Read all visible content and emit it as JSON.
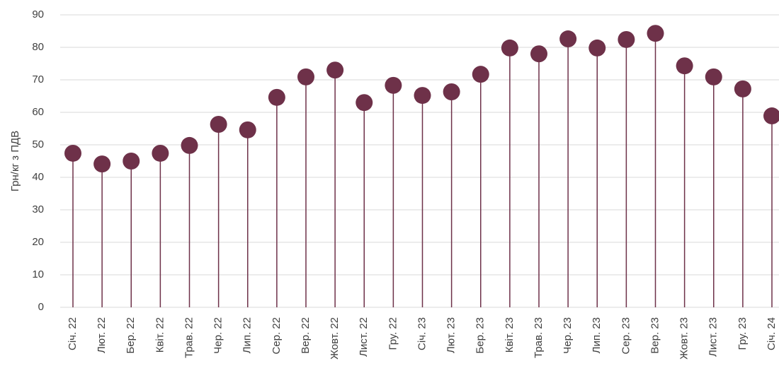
{
  "chart_data": {
    "type": "lollipop",
    "y_label": "Грн/кг з ПДВ",
    "categories": [
      "Січ. 22",
      "Лют. 22",
      "Бер. 22",
      "Квіт. 22",
      "Трав. 22",
      "Чер. 22",
      "Лип. 22",
      "Сер. 22",
      "Вер. 22",
      "Жовт. 22",
      "Лист. 22",
      "Гру. 22",
      "Січ. 23",
      "Лют. 23",
      "Бер. 23",
      "Квіт. 23",
      "Трав. 23",
      "Чер. 23",
      "Лип. 23",
      "Сер. 23",
      "Вер. 23",
      "Жовт. 23",
      "Лист. 23",
      "Гру. 23",
      "Січ. 24"
    ],
    "values": [
      47.4,
      44.1,
      45,
      47.4,
      49.8,
      56.3,
      54.6,
      64.6,
      70.9,
      73,
      63,
      68.3,
      65.2,
      66.3,
      71.7,
      79.8,
      78,
      82.6,
      79.8,
      82.4,
      84.3,
      74.3,
      70.9,
      67.2,
      58.9
    ],
    "color": "#6e3149",
    "ylim": [
      0,
      90
    ],
    "yticks": [
      0,
      10,
      20,
      30,
      40,
      50,
      60,
      70,
      80,
      90
    ],
    "grid": true
  }
}
